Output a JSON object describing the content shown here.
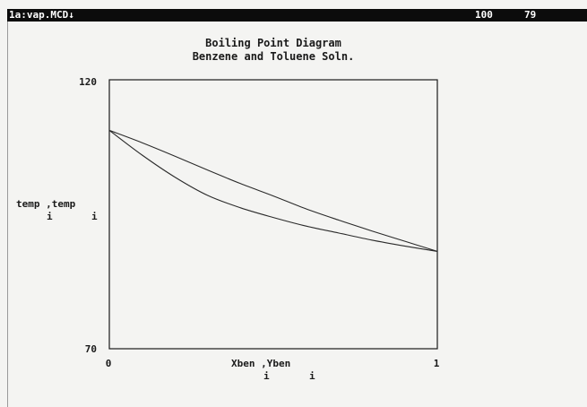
{
  "window": {
    "filename": "1a:vap.MCD↓",
    "indicator_1": "100",
    "indicator_2": "79"
  },
  "chart_data": {
    "type": "line",
    "title": "Boiling Point Diagram",
    "subtitle": "Benzene and Toluene Soln.",
    "ylabel": "temp ,temp",
    "ylabel_subscripts": [
      "i",
      "i"
    ],
    "xlabel": "Xben ,Yben",
    "xlabel_subscripts": [
      "i",
      "i"
    ],
    "xlim": [
      0,
      1
    ],
    "ylim": [
      70,
      120
    ],
    "x_ticks": [
      "0",
      "1"
    ],
    "y_ticks": [
      "120",
      "70"
    ],
    "grid": false,
    "series": [
      {
        "x": [
          0,
          0.1,
          0.2,
          0.3,
          0.4,
          0.5,
          0.6,
          0.7,
          0.8,
          0.9,
          1.0
        ],
        "y": [
          110.6,
          108.3,
          105.8,
          103.2,
          100.7,
          98.4,
          96.0,
          93.9,
          91.9,
          90.0,
          88.1
        ]
      },
      {
        "x": [
          0,
          0.1,
          0.2,
          0.3,
          0.4,
          0.5,
          0.6,
          0.7,
          0.8,
          0.9,
          1.0
        ],
        "y": [
          110.6,
          106.0,
          101.9,
          98.5,
          96.2,
          94.4,
          92.8,
          91.5,
          90.2,
          89.1,
          88.1
        ]
      }
    ]
  }
}
